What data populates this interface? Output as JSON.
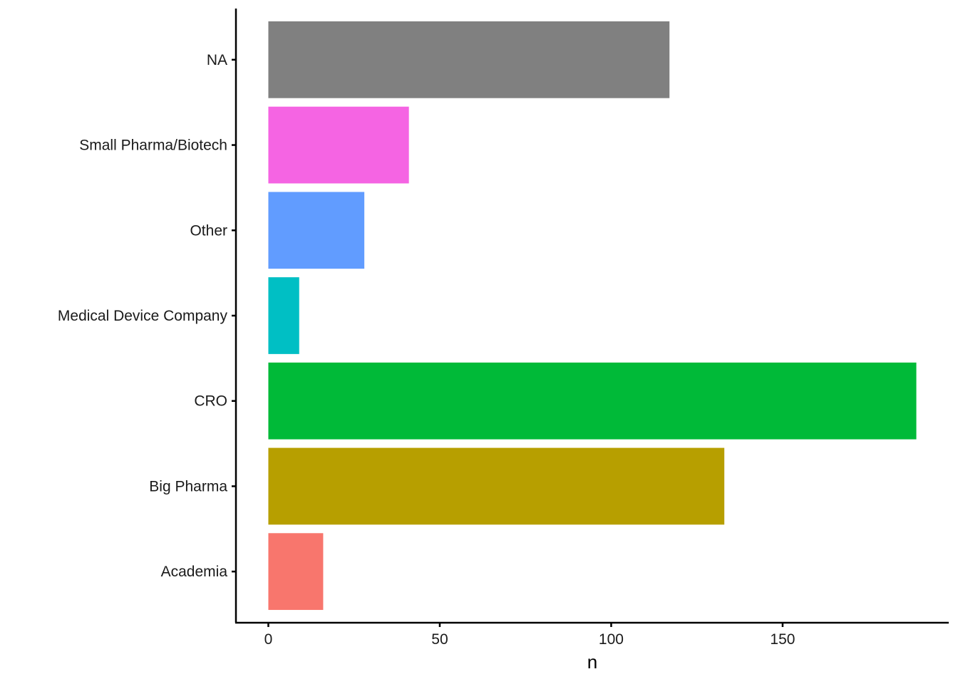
{
  "chart_data": {
    "type": "bar",
    "orientation": "horizontal",
    "categories": [
      "Academia",
      "Big Pharma",
      "CRO",
      "Medical Device Company",
      "Other",
      "Small Pharma/Biotech",
      "NA"
    ],
    "values": [
      16,
      133,
      189,
      9,
      28,
      41,
      117
    ],
    "colors": [
      "#F8766D",
      "#B79F00",
      "#00BA38",
      "#00BFC4",
      "#619CFF",
      "#F564E3",
      "#808080"
    ],
    "xlabel": "n",
    "ylabel": "",
    "x_ticks": [
      0,
      50,
      100,
      150
    ],
    "xlim": [
      -9.45,
      198.45
    ],
    "legend": "none",
    "grid": false
  }
}
